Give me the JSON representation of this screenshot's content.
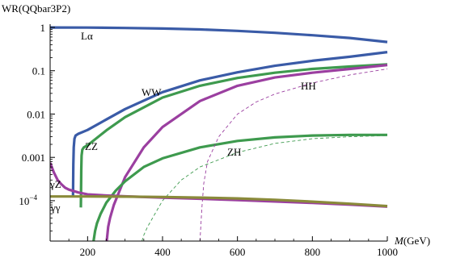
{
  "chart_data": {
    "type": "line",
    "title": "",
    "ylabel": "WR(QQbar3P2)",
    "xlabel_italic": "M",
    "xlabel_unit": "(GeV)",
    "x_scale": "linear",
    "y_scale": "log",
    "xlim": [
      100,
      1000
    ],
    "ylim": [
      1.17e-05,
      1
    ],
    "grid": false,
    "legend": "none",
    "x_ticks": [
      {
        "value": 200,
        "label": "200"
      },
      {
        "value": 400,
        "label": "400"
      },
      {
        "value": 600,
        "label": "600"
      },
      {
        "value": 800,
        "label": "800"
      },
      {
        "value": 1000,
        "label": "1000"
      }
    ],
    "y_ticks": [
      {
        "value": 1,
        "label": "1"
      },
      {
        "value": 0.1,
        "label": "0.1"
      },
      {
        "value": 0.01,
        "label": "0.01"
      },
      {
        "value": 0.001,
        "label": "0.001"
      },
      {
        "value": 0.0001,
        "label": "10",
        "sup": "−4"
      }
    ],
    "series": [
      {
        "name": "Lα",
        "color": "#3a5ba7",
        "style": "solid",
        "x": [
          100,
          200,
          300,
          400,
          500,
          600,
          700,
          800,
          900,
          1000
        ],
        "y": [
          0.995,
          0.99,
          0.97,
          0.94,
          0.9,
          0.83,
          0.75,
          0.66,
          0.57,
          0.46
        ]
      },
      {
        "name": "WW",
        "color": "#3a5ba7",
        "style": "solid",
        "x": [
          161,
          162,
          163,
          165,
          168,
          175,
          200,
          250,
          300,
          400,
          500,
          600,
          700,
          800,
          900,
          1000
        ],
        "y": [
          0.000125,
          0.0007,
          0.0017,
          0.0027,
          0.0032,
          0.0035,
          0.0043,
          0.0075,
          0.013,
          0.032,
          0.06,
          0.092,
          0.13,
          0.17,
          0.21,
          0.27
        ]
      },
      {
        "name": "ZZ",
        "color": "#3e9a4e",
        "style": "solid",
        "x": [
          182,
          183,
          184,
          186,
          190,
          200,
          250,
          300,
          400,
          500,
          600,
          700,
          800,
          900,
          1000
        ],
        "y": [
          7e-05,
          0.0005,
          0.0011,
          0.0015,
          0.0017,
          0.0019,
          0.0042,
          0.0085,
          0.024,
          0.045,
          0.068,
          0.09,
          0.11,
          0.125,
          0.14
        ]
      },
      {
        "name": "HH",
        "color": "#9b3fa0",
        "style": "solid",
        "x": [
          251,
          255,
          260,
          270,
          300,
          350,
          400,
          500,
          600,
          700,
          800,
          900,
          1000
        ],
        "y": [
          1.17e-05,
          2.5e-05,
          4e-05,
          8e-05,
          0.00035,
          0.0017,
          0.005,
          0.02,
          0.045,
          0.07,
          0.09,
          0.11,
          0.135
        ]
      },
      {
        "name": "ZH",
        "color": "#3e9a4e",
        "style": "solid",
        "x": [
          216,
          220,
          225,
          235,
          250,
          275,
          300,
          350,
          400,
          500,
          600,
          700,
          800,
          900,
          1000
        ],
        "y": [
          1.17e-05,
          2e-05,
          3e-05,
          5e-05,
          9e-05,
          0.00017,
          0.00028,
          0.0006,
          0.00095,
          0.0017,
          0.0024,
          0.0029,
          0.0032,
          0.0033,
          0.0033
        ]
      },
      {
        "name": "",
        "color": "#3e9a4e",
        "style": "dashed",
        "x": [
          345,
          350,
          360,
          380,
          400,
          450,
          500,
          600,
          700,
          800,
          900,
          1000
        ],
        "y": [
          1.17e-05,
          1.6e-05,
          2.5e-05,
          5e-05,
          0.0001,
          0.0003,
          0.0006,
          0.0013,
          0.0021,
          0.0027,
          0.003,
          0.0032
        ]
      },
      {
        "name": "",
        "color": "#9b3fa0",
        "style": "dashed",
        "x": [
          500,
          505,
          510,
          520,
          550,
          600,
          650,
          700,
          800,
          900,
          1000
        ],
        "y": [
          1.17e-05,
          7e-05,
          0.00025,
          0.0008,
          0.003,
          0.01,
          0.019,
          0.029,
          0.052,
          0.08,
          0.11
        ]
      },
      {
        "name": "γZ",
        "color": "#9b3fa0",
        "style": "solid",
        "x": [
          100,
          110,
          120,
          130,
          140,
          150,
          175,
          200,
          250,
          300,
          400,
          500,
          600,
          700,
          800,
          900,
          1000
        ],
        "y": [
          0.00075,
          0.00045,
          0.0003,
          0.00024,
          0.0002,
          0.00018,
          0.000155,
          0.00014,
          0.000132,
          0.000126,
          0.000118,
          0.000111,
          0.000103,
          9.6e-05,
          8.9e-05,
          8.1e-05,
          7.3e-05
        ]
      },
      {
        "name": "γγ",
        "color": "#8a8a3a",
        "style": "solid",
        "x": [
          100,
          200,
          300,
          400,
          500,
          600,
          700,
          800,
          900,
          1000
        ],
        "y": [
          0.000125,
          0.000125,
          0.000124,
          0.000122,
          0.000118,
          0.000113,
          0.000105,
          9.5e-05,
          8.5e-05,
          7.5e-05
        ]
      }
    ]
  }
}
